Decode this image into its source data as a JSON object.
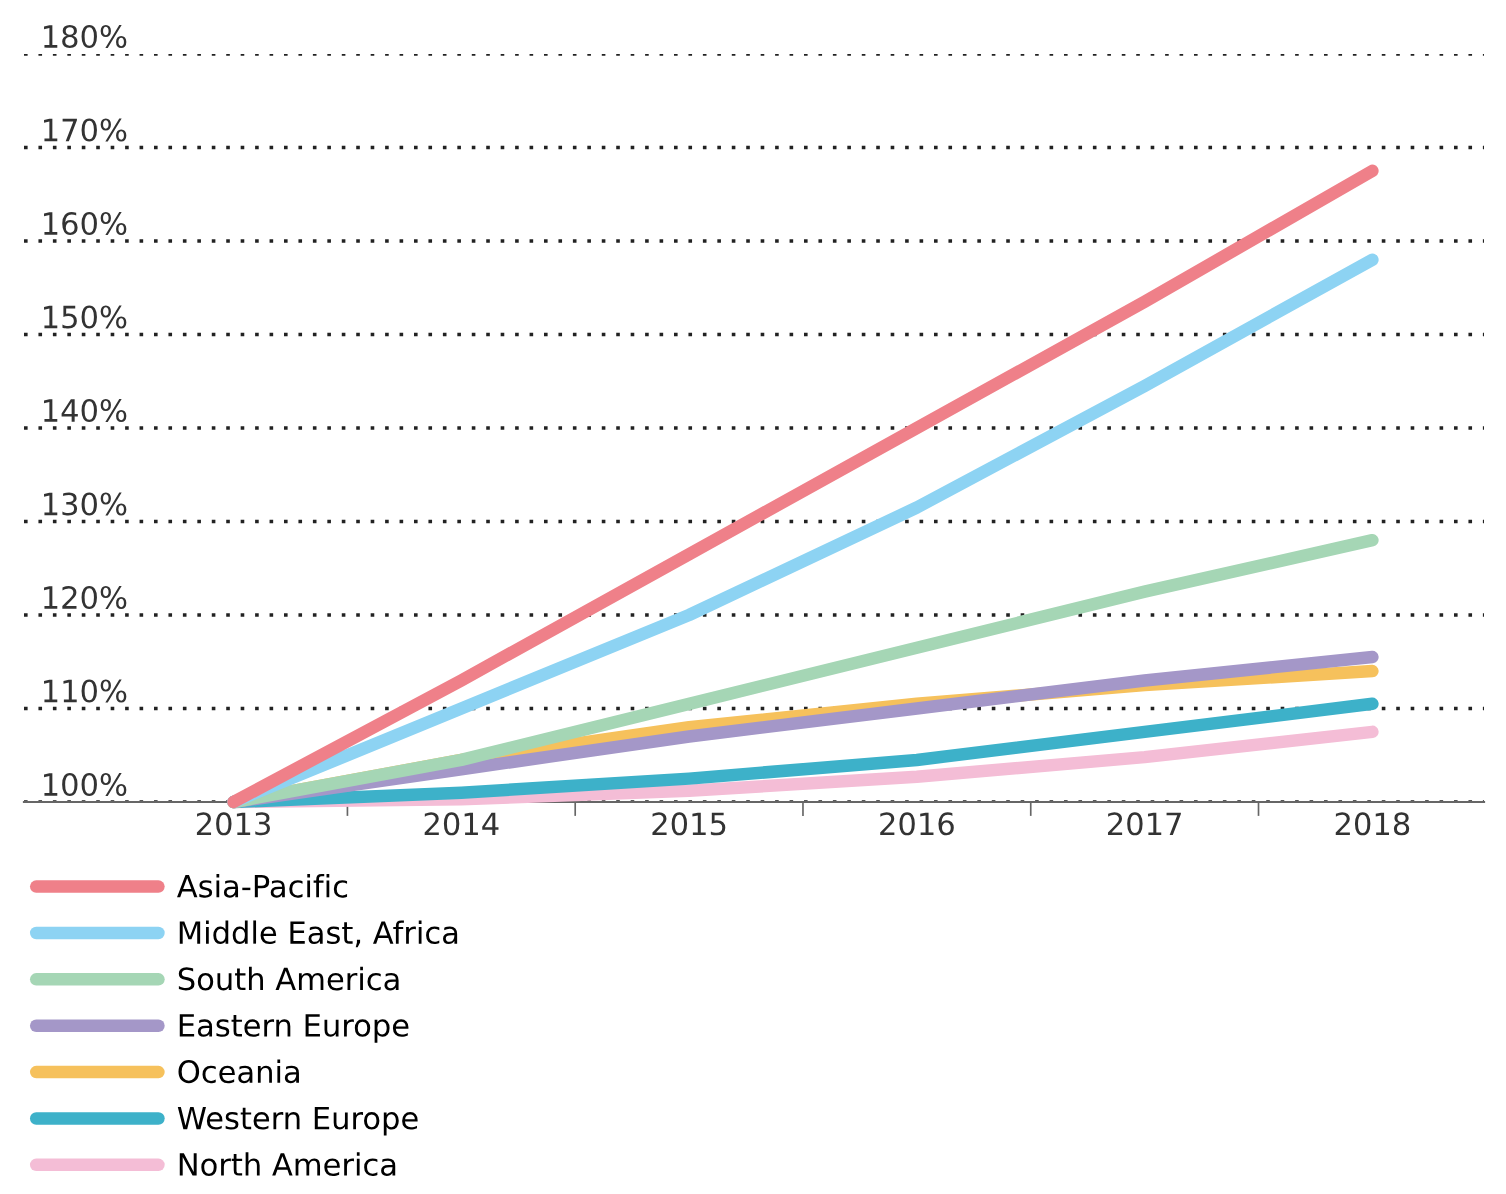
{
  "chart_data": {
    "type": "line",
    "categories": [
      "2013",
      "2014",
      "2015",
      "2016",
      "2017",
      "2018"
    ],
    "series": [
      {
        "name": "Asia-Pacific",
        "color": "#ef8089",
        "values": [
          100,
          113,
          126.5,
          140,
          153.5,
          167.5
        ]
      },
      {
        "name": "Middle East, Africa",
        "color": "#8dd3f3",
        "values": [
          100,
          110,
          120,
          131.5,
          144.5,
          158
        ]
      },
      {
        "name": "South America",
        "color": "#a5d6b5",
        "values": [
          100,
          104.5,
          110.5,
          116.5,
          122.5,
          128
        ]
      },
      {
        "name": "Eastern Europe",
        "color": "#a497c8",
        "values": [
          100,
          103.5,
          107,
          110,
          113,
          115.5
        ]
      },
      {
        "name": "Oceania",
        "color": "#f6c15c",
        "values": [
          100,
          104.5,
          108,
          110.5,
          112.5,
          114
        ]
      },
      {
        "name": "Western Europe",
        "color": "#3db1c9",
        "values": [
          100,
          101,
          102.5,
          104.5,
          107.5,
          110.5
        ]
      },
      {
        "name": "North America",
        "color": "#f4bdd6",
        "values": [
          100,
          100.3,
          101.2,
          102.7,
          104.8,
          107.5
        ]
      }
    ],
    "ylim": [
      100,
      180
    ],
    "yticks": [
      {
        "value": 100,
        "label": "100%"
      },
      {
        "value": 110,
        "label": "110%"
      },
      {
        "value": 120,
        "label": "120%"
      },
      {
        "value": 130,
        "label": "130%"
      },
      {
        "value": 140,
        "label": "140%"
      },
      {
        "value": 150,
        "label": "150%"
      },
      {
        "value": 160,
        "label": "160%"
      },
      {
        "value": 170,
        "label": "170%"
      },
      {
        "value": 180,
        "label": "180%"
      }
    ],
    "grid": "y",
    "legend": "bottom left",
    "marker": "none",
    "line_style": "solid"
  }
}
